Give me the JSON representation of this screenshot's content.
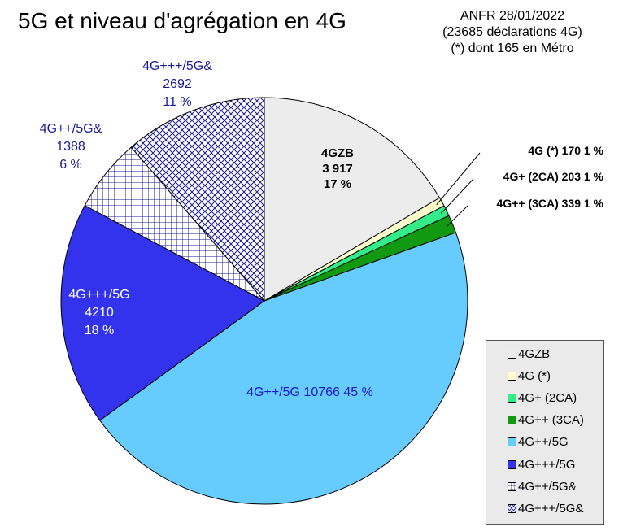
{
  "title": "5G et niveau d'agrégation en 4G",
  "source": {
    "line1": "ANFR 28/01/2022",
    "line2": "(23685 déclarations 4G)",
    "line3": "(*) dont 165 en Métro"
  },
  "chart_data": {
    "type": "pie",
    "total": 23685,
    "start": "12 o'clock, clockwise",
    "slices": [
      {
        "name": "4GZB",
        "value": 3917,
        "color": "#ececec",
        "pattern": "none",
        "label": [
          "4GZB",
          "3 917",
          "17 %"
        ],
        "label_color": "#000000"
      },
      {
        "name": "4G (*)",
        "value": 170,
        "color": "#ffffcc",
        "pattern": "none",
        "label": [
          "4G (*) 170 1 %"
        ],
        "label_color": "#000000"
      },
      {
        "name": "4G+ (2CA)",
        "value": 203,
        "color": "#33ee88",
        "pattern": "none",
        "label": [
          "4G+ (2CA) 203 1 %"
        ],
        "label_color": "#000000"
      },
      {
        "name": "4G++ (3CA)",
        "value": 339,
        "color": "#119911",
        "pattern": "none",
        "label": [
          "4G++ (3CA) 339 1 %"
        ],
        "label_color": "#000000"
      },
      {
        "name": "4G++/5G",
        "value": 10766,
        "color": "#66ccff",
        "pattern": "none",
        "label": [
          "4G++/5G 10766 45 %"
        ],
        "label_color": "#1a1acc"
      },
      {
        "name": "4G+++/5G",
        "value": 4210,
        "color": "#3333ee",
        "pattern": "none",
        "label": [
          "4G+++/5G",
          "4210",
          "18 %"
        ],
        "label_color": "#ffffff"
      },
      {
        "name": "4G++/5G&",
        "value": 1388,
        "color": "#ffffff",
        "pattern": "grid",
        "label": [
          "4G++/5G&",
          "1388",
          "6 %"
        ],
        "label_color": "#1a1a99"
      },
      {
        "name": "4G+++/5G&",
        "value": 2692,
        "color": "#ffffff",
        "pattern": "crosshatch",
        "label": [
          "4G+++/5G&",
          "2692",
          "11 %"
        ],
        "label_color": "#1a1a99"
      }
    ]
  },
  "legend": {
    "items": [
      {
        "label": "4GZB",
        "color": "#ececec",
        "pattern": "none"
      },
      {
        "label": "4G (*)",
        "color": "#ffffcc",
        "pattern": "none"
      },
      {
        "label": "4G+ (2CA)",
        "color": "#33ee88",
        "pattern": "none"
      },
      {
        "label": "4G++ (3CA)",
        "color": "#119911",
        "pattern": "none"
      },
      {
        "label": "4G++/5G",
        "color": "#66ccff",
        "pattern": "none"
      },
      {
        "label": "4G+++/5G",
        "color": "#3333ee",
        "pattern": "none"
      },
      {
        "label": "4G++/5G&",
        "color": "#ffffff",
        "pattern": "grid"
      },
      {
        "label": "4G+++/5G&",
        "color": "#ffffff",
        "pattern": "crosshatch"
      }
    ]
  }
}
